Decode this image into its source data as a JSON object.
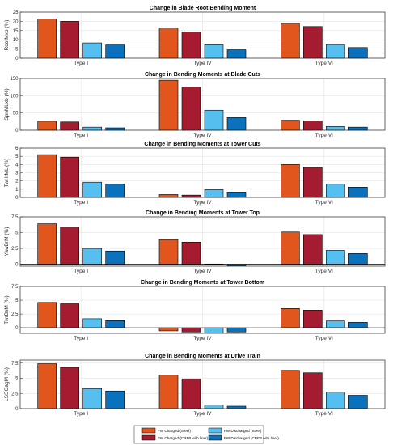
{
  "legend": {
    "position": "bottom-center",
    "entries": [
      {
        "label": "FW Charged (Steel)",
        "color": "#e0561c"
      },
      {
        "label": "FW Charged (CRFP with liner)",
        "color": "#a51c30"
      },
      {
        "label": "FW Discharged (Steel)",
        "color": "#55bff0"
      },
      {
        "label": "FW Discharged (CRFP with liner)",
        "color": "#0a72bd"
      }
    ]
  },
  "chart_data": [
    {
      "type": "bar",
      "title": "Change in Blade Root Bending Moment",
      "ylabel": "RootMxb (%)",
      "ylim": [
        0,
        25
      ],
      "yticks": [
        0,
        5,
        10,
        15,
        20,
        25
      ],
      "grid": true,
      "categories": [
        "Type I",
        "Type IV",
        "Type VI"
      ],
      "series": [
        {
          "name": "FW Charged (Steel)",
          "values": [
            21.2,
            16.4,
            18.9
          ]
        },
        {
          "name": "FW Charged (CRFP with liner)",
          "values": [
            20.0,
            14.3,
            17.2
          ]
        },
        {
          "name": "FW Discharged (Steel)",
          "values": [
            8.3,
            7.3,
            7.4
          ]
        },
        {
          "name": "FW Discharged (CRFP with liner)",
          "values": [
            7.2,
            4.6,
            5.8
          ]
        }
      ]
    },
    {
      "type": "bar",
      "title": "Change in Bending Moments at Blade Cuts",
      "ylabel": "SpnMLxb (%)",
      "ylim": [
        0,
        150
      ],
      "yticks": [
        0,
        50,
        100,
        150
      ],
      "grid": true,
      "categories": [
        "Type I",
        "Type IV",
        "Type VI"
      ],
      "series": [
        {
          "name": "FW Charged (Steel)",
          "values": [
            26,
            145,
            29
          ]
        },
        {
          "name": "FW Charged (CRFP with liner)",
          "values": [
            24,
            125,
            27
          ]
        },
        {
          "name": "FW Discharged (Steel)",
          "values": [
            9,
            58,
            11
          ]
        },
        {
          "name": "FW Discharged (CRFP with liner)",
          "values": [
            7,
            37,
            9
          ]
        }
      ]
    },
    {
      "type": "bar",
      "title": "Change in Bending Moments at Tower Cuts",
      "ylabel": "TwHtML (%)",
      "ylim": [
        0,
        6
      ],
      "yticks": [
        0,
        1,
        2,
        3,
        4,
        5,
        6
      ],
      "grid": true,
      "categories": [
        "Type I",
        "Type IV",
        "Type VI"
      ],
      "series": [
        {
          "name": "FW Charged (Steel)",
          "values": [
            5.2,
            0.35,
            4.0
          ]
        },
        {
          "name": "FW Charged (CRFP with liner)",
          "values": [
            4.9,
            0.28,
            3.65
          ]
        },
        {
          "name": "FW Discharged (Steel)",
          "values": [
            1.85,
            0.95,
            1.6
          ]
        },
        {
          "name": "FW Discharged (CRFP with liner)",
          "values": [
            1.6,
            0.65,
            1.25
          ]
        }
      ]
    },
    {
      "type": "bar",
      "title": "Change in Bending Moments at Tower Top",
      "ylabel": "YawBrM (%)",
      "ylim": [
        -0.3,
        7.5
      ],
      "yticks": [
        0,
        2.5,
        5,
        7.5
      ],
      "yticklabels": [
        "0",
        "2.5",
        "5",
        "7.5"
      ],
      "grid": true,
      "categories": [
        "Type I",
        "Type IV",
        "Type VI"
      ],
      "series": [
        {
          "name": "FW Charged (Steel)",
          "values": [
            6.4,
            3.9,
            5.1
          ]
        },
        {
          "name": "FW Charged (CRFP with liner)",
          "values": [
            5.9,
            3.5,
            4.7
          ]
        },
        {
          "name": "FW Discharged (Steel)",
          "values": [
            2.5,
            0.05,
            2.2
          ]
        },
        {
          "name": "FW Discharged (CRFP with liner)",
          "values": [
            2.1,
            -0.25,
            1.7
          ]
        }
      ]
    },
    {
      "type": "bar",
      "title": "Change in Bending Moments at Tower Bottom",
      "ylabel": "TwrBsM (%)",
      "ylim": [
        -1,
        7.5
      ],
      "yticks": [
        0,
        2.5,
        5,
        7.5
      ],
      "yticklabels": [
        "0",
        "2.5",
        "5",
        "7.5"
      ],
      "grid": true,
      "categories": [
        "Type I",
        "Type IV",
        "Type VI"
      ],
      "series": [
        {
          "name": "FW Charged (Steel)",
          "values": [
            4.6,
            -0.55,
            3.5
          ]
        },
        {
          "name": "FW Charged (CRFP with liner)",
          "values": [
            4.35,
            -0.75,
            3.2
          ]
        },
        {
          "name": "FW Discharged (Steel)",
          "values": [
            1.65,
            -0.95,
            1.25
          ]
        },
        {
          "name": "FW Discharged (CRFP with liner)",
          "values": [
            1.3,
            -0.75,
            1.0
          ]
        }
      ]
    },
    {
      "type": "bar",
      "title": "Change in Bending Moments at Drive Train",
      "ylabel": "LSSGagM (%)",
      "ylim": [
        0,
        8
      ],
      "yticks": [
        0,
        2.5,
        5,
        7.5
      ],
      "yticklabels": [
        "0",
        "2.5",
        "5",
        "7.5"
      ],
      "grid": true,
      "categories": [
        "Type I",
        "Type IV",
        "Type VI"
      ],
      "series": [
        {
          "name": "FW Charged (Steel)",
          "values": [
            7.4,
            5.5,
            6.3
          ]
        },
        {
          "name": "FW Charged (CRFP with liner)",
          "values": [
            6.8,
            4.9,
            5.9
          ]
        },
        {
          "name": "FW Discharged (Steel)",
          "values": [
            3.3,
            0.6,
            2.7
          ]
        },
        {
          "name": "FW Discharged (CRFP with liner)",
          "values": [
            2.9,
            0.4,
            2.2
          ]
        }
      ]
    }
  ]
}
